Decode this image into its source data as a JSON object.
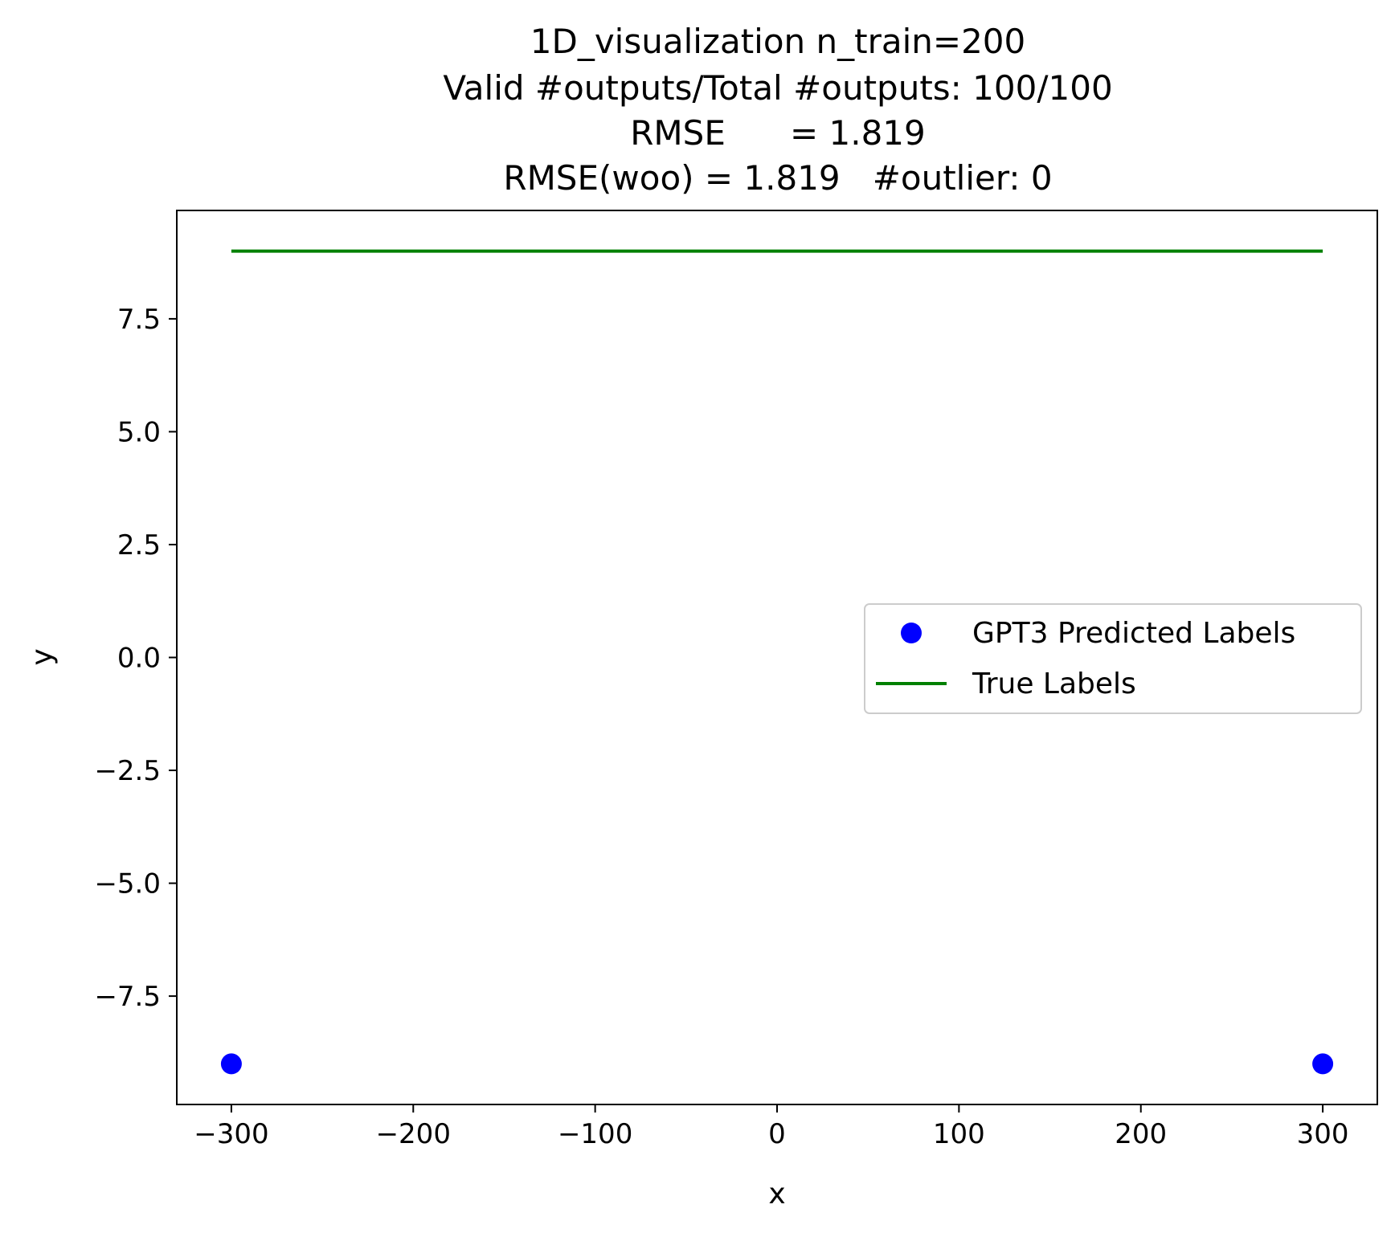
{
  "chart_data": {
    "type": "scatter",
    "title_lines": [
      "1D_visualization  n_train=200",
      "Valid #outputs/Total #outputs: 100/100",
      "RMSE      = 1.819",
      "RMSE(woo) = 1.819   #outlier: 0"
    ],
    "xlabel": "x",
    "ylabel": "y",
    "xlim": [
      -330,
      330
    ],
    "ylim": [
      -9.9,
      9.9
    ],
    "x_ticks": [
      -300,
      -200,
      -100,
      0,
      100,
      200,
      300
    ],
    "x_tick_labels": [
      "−300",
      "−200",
      "−100",
      "0",
      "100",
      "200",
      "300"
    ],
    "y_ticks": [
      -7.5,
      -5.0,
      -2.5,
      0.0,
      2.5,
      5.0,
      7.5
    ],
    "y_tick_labels": [
      "−7.5",
      "−5.0",
      "−2.5",
      "0.0",
      "2.5",
      "5.0",
      "7.5"
    ],
    "grid": false,
    "legend_position": "center-right",
    "series": [
      {
        "name": "GPT3 Predicted Labels",
        "kind": "scatter",
        "color": "#0000ff",
        "points": [
          [
            -300,
            -9
          ],
          [
            300,
            -9
          ]
        ]
      },
      {
        "name": "True Labels",
        "kind": "line",
        "color": "#008000",
        "points": [
          [
            -300,
            9
          ],
          [
            300,
            9
          ]
        ]
      }
    ]
  }
}
